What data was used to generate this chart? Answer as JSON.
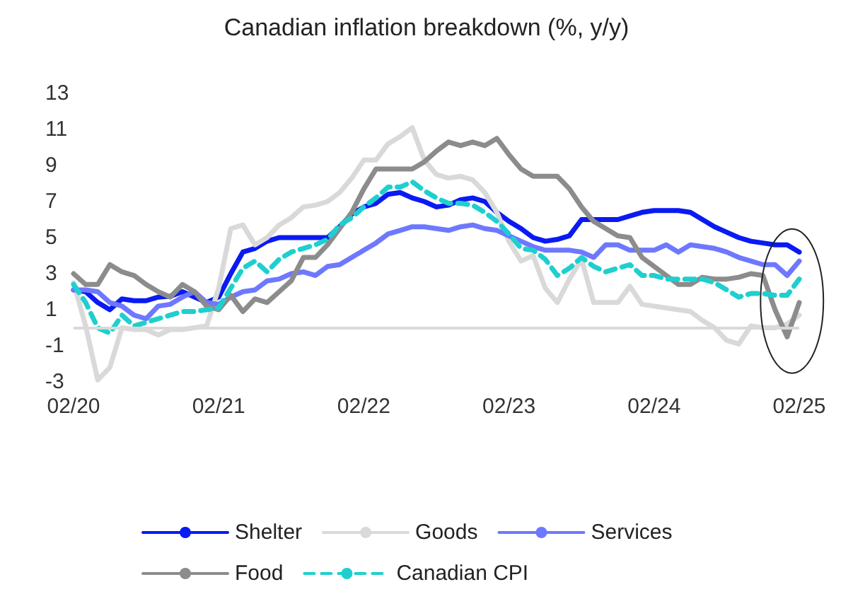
{
  "chart_data": {
    "type": "line",
    "title": "Canadian inflation breakdown (%, y/y)",
    "categories": [
      "02/20",
      null,
      null,
      null,
      null,
      null,
      null,
      null,
      null,
      null,
      null,
      null,
      "02/21",
      null,
      null,
      null,
      null,
      null,
      null,
      null,
      null,
      null,
      null,
      null,
      "02/22",
      null,
      null,
      null,
      null,
      null,
      null,
      null,
      null,
      null,
      null,
      null,
      "02/23",
      null,
      null,
      null,
      null,
      null,
      null,
      null,
      null,
      null,
      null,
      null,
      "02/24",
      null,
      null,
      null,
      null,
      null,
      null,
      null,
      null,
      null,
      null,
      null,
      "02/25"
    ],
    "series": [
      {
        "name": "Shelter",
        "color": "#0a1af2",
        "values": [
          2.1,
          2.0,
          1.4,
          1.0,
          1.6,
          1.5,
          1.5,
          1.7,
          1.75,
          2.0,
          1.7,
          1.4,
          1.7,
          3.0,
          4.2,
          4.4,
          4.8,
          5.0,
          5.0,
          5.0,
          5.0,
          5.0,
          5.6,
          6.3,
          6.7,
          6.9,
          7.4,
          7.5,
          7.2,
          7.0,
          6.7,
          6.8,
          7.1,
          7.2,
          7.0,
          6.4,
          5.9,
          5.5,
          5.0,
          4.8,
          4.9,
          5.1,
          6.0,
          6.0,
          6.0,
          6.0,
          6.2,
          6.4,
          6.5,
          6.5,
          6.5,
          6.4,
          6.0,
          5.6,
          5.3,
          5.0,
          4.8,
          4.7,
          4.6,
          4.6,
          4.2
        ]
      },
      {
        "name": "Goods",
        "color": "#d9d9d9",
        "values": [
          2.5,
          0.1,
          -2.9,
          -2.2,
          0.0,
          -0.1,
          -0.1,
          -0.4,
          -0.1,
          -0.1,
          0.0,
          0.1,
          2.2,
          5.5,
          5.7,
          4.6,
          5.0,
          5.7,
          6.1,
          6.7,
          6.8,
          7.0,
          7.5,
          8.3,
          9.3,
          9.3,
          10.2,
          10.6,
          11.1,
          9.3,
          8.5,
          8.3,
          8.4,
          8.2,
          7.5,
          6.4,
          4.8,
          3.7,
          4.0,
          2.2,
          1.4,
          2.7,
          3.8,
          1.4,
          1.4,
          1.4,
          2.3,
          1.3,
          1.2,
          1.1,
          1.0,
          0.9,
          0.4,
          0.0,
          -0.7,
          -0.9,
          0.1,
          0.0,
          0.0,
          0.2,
          0.7
        ]
      },
      {
        "name": "Services",
        "color": "#6e78ff",
        "values": [
          2.1,
          2.1,
          2.0,
          1.4,
          1.2,
          0.7,
          0.5,
          1.2,
          1.3,
          1.7,
          2.0,
          1.4,
          1.3,
          1.7,
          2.0,
          2.1,
          2.6,
          2.7,
          3.0,
          3.1,
          2.9,
          3.4,
          3.5,
          3.9,
          4.3,
          4.7,
          5.2,
          5.4,
          5.6,
          5.6,
          5.5,
          5.4,
          5.6,
          5.7,
          5.5,
          5.4,
          5.1,
          4.8,
          4.5,
          4.3,
          4.3,
          4.3,
          4.2,
          3.9,
          4.6,
          4.6,
          4.3,
          4.3,
          4.3,
          4.6,
          4.2,
          4.6,
          4.5,
          4.4,
          4.2,
          3.9,
          3.7,
          3.5,
          3.5,
          2.9,
          3.7
        ]
      },
      {
        "name": "Food",
        "color": "#8c8c8c",
        "values": [
          3.0,
          2.4,
          2.4,
          3.5,
          3.1,
          2.9,
          2.4,
          2.0,
          1.7,
          2.4,
          2.0,
          1.2,
          1.0,
          1.8,
          0.9,
          1.6,
          1.4,
          2.0,
          2.6,
          3.9,
          3.9,
          4.6,
          5.5,
          6.4,
          7.7,
          8.8,
          8.8,
          8.8,
          8.8,
          9.2,
          9.8,
          10.3,
          10.1,
          10.3,
          10.1,
          10.5,
          9.6,
          8.8,
          8.4,
          8.4,
          8.4,
          7.7,
          6.7,
          5.9,
          5.5,
          5.1,
          5.0,
          3.9,
          3.4,
          2.9,
          2.4,
          2.4,
          2.8,
          2.7,
          2.7,
          2.8,
          3.0,
          2.9,
          1.0,
          -0.5,
          1.4
        ]
      },
      {
        "name": "Canadian CPI",
        "color": "#1fcfcf",
        "line_style": "dashed",
        "values": [
          2.4,
          1.4,
          0.0,
          -0.3,
          0.7,
          0.1,
          0.3,
          0.5,
          0.7,
          0.9,
          0.9,
          1.0,
          1.1,
          2.2,
          3.3,
          3.7,
          3.1,
          3.8,
          4.2,
          4.4,
          4.6,
          4.9,
          5.7,
          6.1,
          6.7,
          7.2,
          7.8,
          7.8,
          8.1,
          7.6,
          7.2,
          6.9,
          6.9,
          6.8,
          6.4,
          5.9,
          5.2,
          4.4,
          4.3,
          3.8,
          2.9,
          3.3,
          3.9,
          3.4,
          3.1,
          3.3,
          3.5,
          2.9,
          2.9,
          2.7,
          2.7,
          2.7,
          2.7,
          2.5,
          2.1,
          1.7,
          1.9,
          1.9,
          1.8,
          1.8,
          2.7
        ]
      }
    ],
    "ylim": [
      -3,
      13
    ],
    "yticks": [
      -3,
      -1,
      1,
      3,
      5,
      7,
      9,
      11,
      13
    ],
    "ref_lines": [
      {
        "axis": "y",
        "value": 0,
        "color": "#d9d9d9"
      }
    ],
    "line_style": "solid",
    "marker": "none",
    "grid": false,
    "legend": "bottom"
  }
}
